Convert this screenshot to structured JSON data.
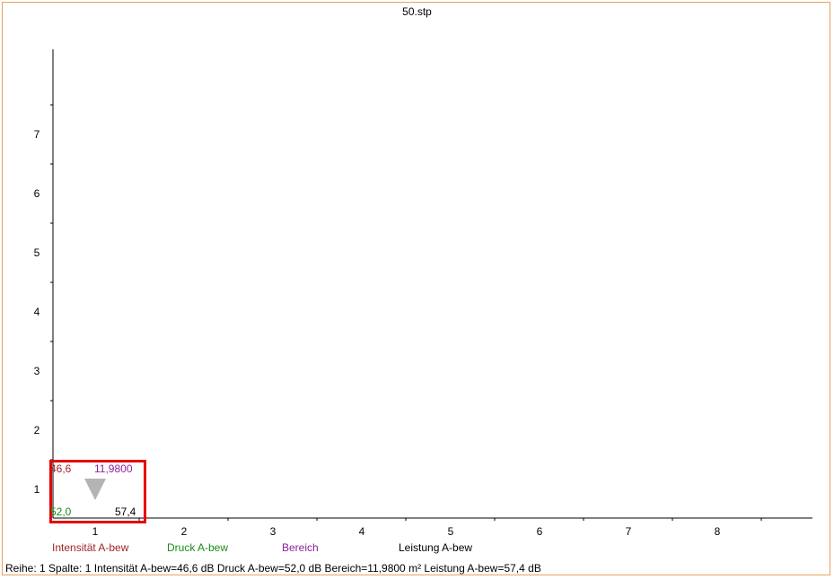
{
  "window": {
    "title": "50.stp"
  },
  "colors": {
    "intensity": "#a0252a",
    "pressure": "#1a8a1a",
    "area": "#8e1f9a",
    "power": "#000000",
    "marker": "#b4b4b4",
    "selection": "#e60000"
  },
  "chart_data": {
    "type": "scatter",
    "x_ticks": [
      "1",
      "2",
      "3",
      "4",
      "5",
      "6",
      "7",
      "8"
    ],
    "y_ticks": [
      "1",
      "2",
      "3",
      "4",
      "5",
      "6",
      "7"
    ],
    "points": [
      {
        "row": 1,
        "column": 1,
        "marker": "down-triangle",
        "intensity": "46,6",
        "area": "11,9800",
        "pressure": "52,0",
        "power": "57,4"
      }
    ]
  },
  "legend": [
    {
      "label": "Intensität A-bew",
      "color_key": "intensity"
    },
    {
      "label": "Druck A-bew",
      "color_key": "pressure"
    },
    {
      "label": "Bereich",
      "color_key": "area"
    },
    {
      "label": "Leistung A-bew",
      "color_key": "power"
    }
  ],
  "status_bar": {
    "text": "Reihe: 1 Spalte: 1  Intensität A-bew=46,6 dB  Druck A-bew=52,0 dB  Bereich=11,9800 m²  Leistung A-bew=57,4 dB"
  }
}
